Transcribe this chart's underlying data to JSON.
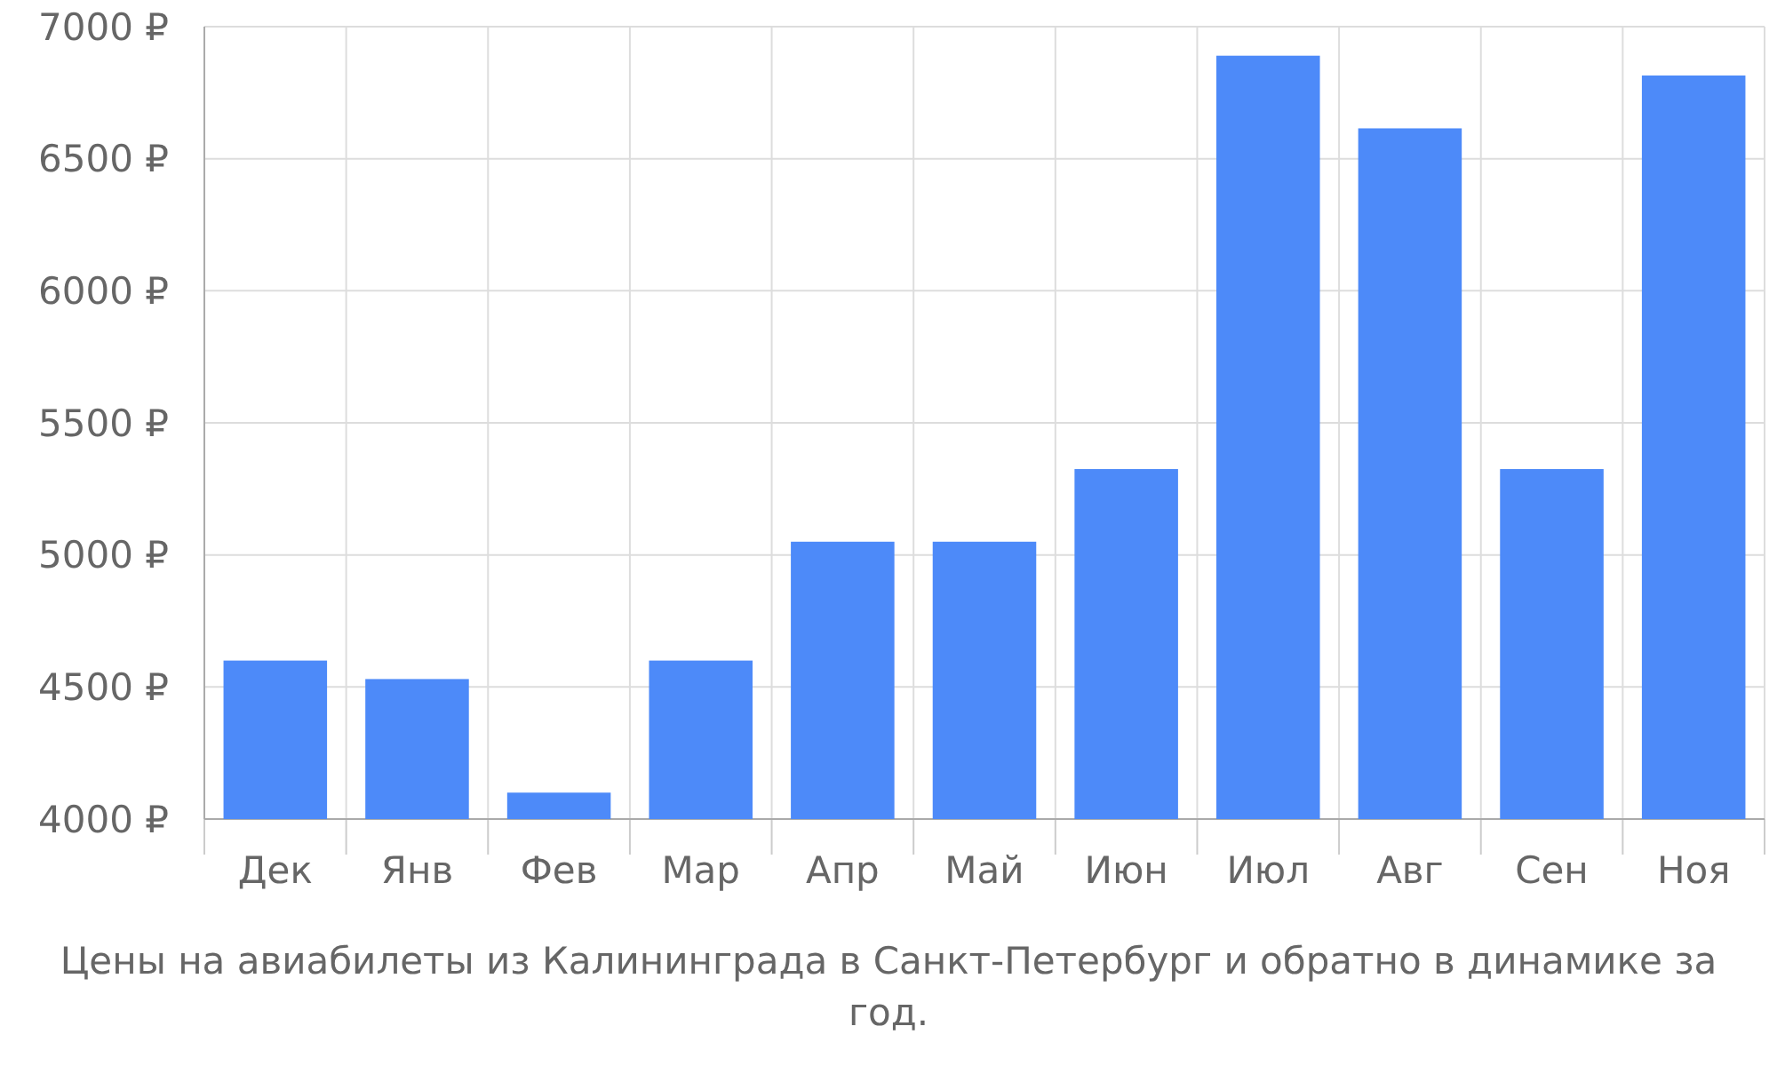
{
  "chart_data": {
    "type": "bar",
    "categories": [
      "Дек",
      "Янв",
      "Фев",
      "Мар",
      "Апр",
      "Май",
      "Июн",
      "Июл",
      "Авг",
      "Сен",
      "Ноя"
    ],
    "values": [
      4600,
      4530,
      4100,
      4600,
      5050,
      5050,
      5325,
      6890,
      6615,
      5325,
      6815
    ],
    "color": "#4d8af9",
    "ylim": [
      4000,
      7000
    ],
    "yticks": [
      {
        "value": 4000,
        "label": "4000 ₽"
      },
      {
        "value": 4500,
        "label": "4500 ₽"
      },
      {
        "value": 5000,
        "label": "5000 ₽"
      },
      {
        "value": 5500,
        "label": "5500 ₽"
      },
      {
        "value": 6000,
        "label": "6000 ₽"
      },
      {
        "value": 6500,
        "label": "6500 ₽"
      },
      {
        "value": 7000,
        "label": "7000 ₽"
      }
    ],
    "grid": true,
    "annotations": [
      "Цены на авиабилеты из Калининграда в Санкт-Петербург и обратно в динамике за год."
    ]
  }
}
